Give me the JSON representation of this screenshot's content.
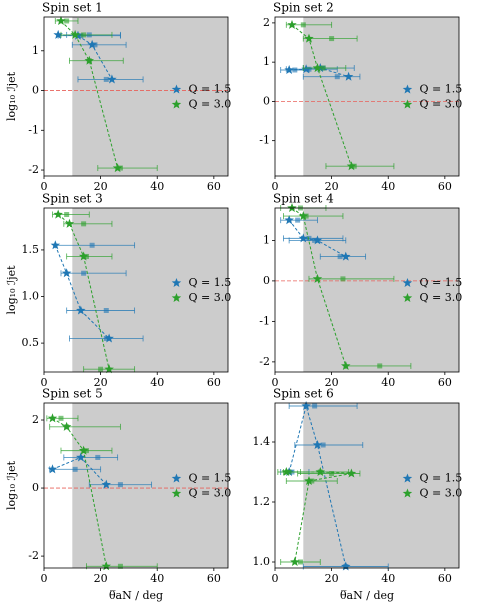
{
  "chart_data": [
    {
      "type": "line",
      "title": "Spin set 1",
      "ylabel": "log₁₀ ℐjet",
      "xlim": [
        0,
        65
      ],
      "ylim": [
        -2.15,
        1.85
      ],
      "xticks": [
        0,
        20,
        40,
        60
      ],
      "yticks": [
        -2,
        -1,
        0,
        1
      ],
      "shade_from": 10,
      "hline": 0,
      "series": [
        {
          "name": "Q = 1.5",
          "color": "#1f77b4",
          "x": [
            5,
            12,
            17,
            24
          ],
          "values": [
            1.4,
            1.38,
            1.15,
            0.28
          ],
          "square_x": [
            16,
            13,
            18,
            22
          ],
          "xerr_low": [
            8,
            5,
            10,
            12
          ],
          "xerr_high": [
            27,
            27,
            29,
            35
          ]
        },
        {
          "name": "Q = 3.0",
          "color": "#2ca02c",
          "x": [
            6,
            11,
            16,
            26
          ],
          "values": [
            1.75,
            1.4,
            0.75,
            -1.95
          ],
          "square_x": [
            8,
            14,
            16,
            27
          ],
          "xerr_low": [
            4,
            6,
            9,
            19
          ],
          "xerr_high": [
            12,
            24,
            28,
            40
          ]
        }
      ]
    },
    {
      "type": "line",
      "title": "Spin set 2",
      "xlim": [
        0,
        65
      ],
      "ylim": [
        -1.9,
        2.15
      ],
      "xticks": [
        0,
        20,
        40,
        60
      ],
      "yticks": [
        -1,
        0,
        1,
        2
      ],
      "shade_from": 10,
      "hline": 0,
      "series": [
        {
          "name": "Q = 1.5",
          "color": "#1f77b4",
          "x": [
            5,
            11,
            16,
            26
          ],
          "values": [
            0.8,
            0.82,
            0.85,
            0.63
          ],
          "square_x": [
            7,
            12,
            17,
            22
          ],
          "xerr_low": [
            2,
            4,
            10,
            10
          ],
          "xerr_high": [
            12,
            22,
            28,
            30
          ]
        },
        {
          "name": "Q = 3.0",
          "color": "#2ca02c",
          "x": [
            6,
            12,
            15,
            27
          ],
          "values": [
            1.95,
            1.6,
            0.85,
            -1.65
          ],
          "square_x": [
            10,
            20,
            17,
            28
          ],
          "xerr_low": [
            4,
            10,
            10,
            18
          ],
          "xerr_high": [
            20,
            29,
            25,
            42
          ]
        }
      ]
    },
    {
      "type": "line",
      "title": "Spin set 3",
      "ylabel": "log₁₀ ℐjet",
      "xlim": [
        0,
        65
      ],
      "ylim": [
        0.19,
        1.95
      ],
      "xticks": [
        0,
        20,
        40,
        60
      ],
      "yticks": [
        0.5,
        {
          "value": 1,
          "label": "1.0"
        },
        1.5
      ],
      "shade_from": 10,
      "series": [
        {
          "name": "Q = 1.5",
          "color": "#1f77b4",
          "x": [
            4,
            8,
            13,
            23
          ],
          "values": [
            1.55,
            1.25,
            0.85,
            0.55
          ],
          "square_x": [
            17,
            14,
            22,
            22
          ],
          "xerr_low": [
            4,
            6,
            8,
            9
          ],
          "xerr_high": [
            32,
            29,
            32,
            35
          ]
        },
        {
          "name": "Q = 3.0",
          "color": "#2ca02c",
          "x": [
            5,
            9,
            14,
            23
          ],
          "values": [
            1.88,
            1.78,
            1.43,
            0.22
          ],
          "square_x": [
            8,
            14,
            15,
            20
          ],
          "xerr_low": [
            3,
            7,
            8,
            14
          ],
          "xerr_high": [
            16,
            24,
            24,
            32
          ]
        }
      ]
    },
    {
      "type": "line",
      "title": "Spin set 4",
      "xlim": [
        0,
        65
      ],
      "ylim": [
        -2.25,
        1.8
      ],
      "xticks": [
        0,
        20,
        40,
        60
      ],
      "yticks": [
        -2,
        -1,
        0,
        1
      ],
      "shade_from": 10,
      "hline": 0,
      "series": [
        {
          "name": "Q = 1.5",
          "color": "#1f77b4",
          "x": [
            5,
            10,
            15,
            25
          ],
          "values": [
            1.5,
            1.05,
            1.0,
            0.6
          ],
          "square_x": [
            8,
            12,
            14,
            23
          ],
          "xerr_low": [
            2,
            3,
            5,
            16
          ],
          "xerr_high": [
            15,
            24,
            25,
            32
          ]
        },
        {
          "name": "Q = 3.0",
          "color": "#2ca02c",
          "x": [
            6,
            10,
            15,
            25
          ],
          "values": [
            1.8,
            1.6,
            0.05,
            -2.1
          ],
          "square_x": [
            9,
            11,
            24,
            37
          ],
          "xerr_low": [
            2,
            3,
            12,
            25
          ],
          "xerr_high": [
            18,
            24,
            42,
            48
          ]
        }
      ]
    },
    {
      "type": "line",
      "title": "Spin set 5",
      "ylabel": "log₁₀ ℐjet",
      "xlabel": "θ̅aN / deg",
      "xlim": [
        0,
        65
      ],
      "ylim": [
        -2.35,
        2.5
      ],
      "xticks": [
        0,
        20,
        40,
        60
      ],
      "yticks": [
        -2,
        0,
        2
      ],
      "shade_from": 10,
      "hline": 0,
      "series": [
        {
          "name": "Q = 1.5",
          "color": "#1f77b4",
          "x": [
            3,
            13,
            22
          ],
          "values": [
            0.55,
            0.9,
            0.1
          ],
          "square_x": [
            11,
            19,
            27
          ],
          "xerr_low": [
            2,
            7,
            16
          ],
          "xerr_high": [
            20,
            26,
            38
          ]
        },
        {
          "name": "Q = 3.0",
          "color": "#2ca02c",
          "x": [
            3,
            8,
            14,
            22
          ],
          "values": [
            2.05,
            1.8,
            1.1,
            -2.3
          ],
          "square_x": [
            6,
            8,
            15,
            27
          ],
          "xerr_low": [
            1,
            2,
            6,
            15
          ],
          "xerr_high": [
            12,
            27,
            24,
            40
          ]
        }
      ]
    },
    {
      "type": "line",
      "title": "Spin set 6",
      "xlabel": "θ̅aN / deg",
      "xlim": [
        0,
        65
      ],
      "ylim": [
        0.98,
        1.53
      ],
      "xticks": [
        0,
        20,
        40,
        60
      ],
      "yticks": [
        {
          "value": 1,
          "label": "1.0"
        },
        1.2,
        1.4
      ],
      "shade_from": 10,
      "series": [
        {
          "name": "Q = 1.5",
          "color": "#1f77b4",
          "x": [
            5,
            11,
            15,
            25
          ],
          "values": [
            1.3,
            1.52,
            1.39,
            0.985
          ],
          "square_x": [
            6,
            14,
            17,
            25
          ],
          "xerr_low": [
            2,
            5,
            7,
            10
          ],
          "xerr_high": [
            12,
            29,
            31,
            40
          ]
        },
        {
          "name": "Q = 3.0",
          "color": "#2ca02c",
          "x": [
            4,
            16,
            27,
            12,
            7
          ],
          "values": [
            1.3,
            1.3,
            1.295,
            1.27,
            1.0
          ],
          "square_x": [
            5,
            16,
            20,
            13,
            9
          ],
          "xerr_low": [
            1,
            3,
            8,
            4,
            2
          ],
          "xerr_high": [
            9,
            26,
            30,
            22,
            16
          ]
        }
      ]
    }
  ]
}
